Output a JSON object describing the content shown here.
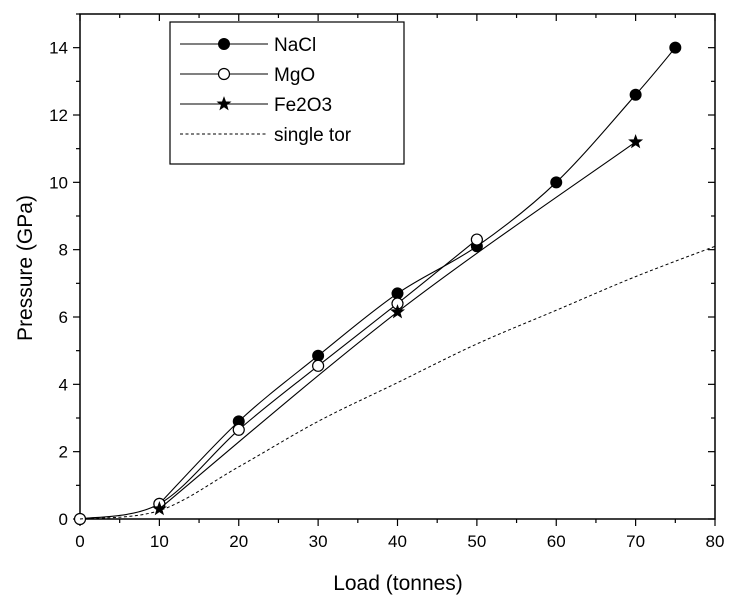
{
  "chart_data": {
    "type": "line",
    "xlabel": "Load (tonnes)",
    "ylabel": "Pressure (GPa)",
    "xlim": [
      0,
      80
    ],
    "ylim": [
      0,
      15
    ],
    "xticks": [
      0,
      10,
      20,
      30,
      40,
      50,
      60,
      70,
      80
    ],
    "yticks": [
      0,
      2,
      4,
      6,
      8,
      10,
      12,
      14
    ],
    "grid": false,
    "legend_position": "top-left",
    "series": [
      {
        "name": "NaCl",
        "marker": "filled-circle",
        "line": "solid",
        "x": [
          10,
          20,
          30,
          40,
          50,
          60,
          70,
          75
        ],
        "y": [
          0.45,
          2.9,
          4.85,
          6.7,
          8.1,
          10.0,
          12.6,
          14.0
        ]
      },
      {
        "name": "MgO",
        "marker": "open-circle",
        "line": "solid",
        "x": [
          0,
          10,
          20,
          30,
          40,
          50
        ],
        "y": [
          0.0,
          0.45,
          2.65,
          4.55,
          6.4,
          8.3
        ]
      },
      {
        "name": "Fe2O3",
        "marker": "star",
        "line": "solid",
        "x": [
          10,
          40,
          70
        ],
        "y": [
          0.3,
          6.15,
          11.2
        ]
      },
      {
        "name": "single tor",
        "marker": "none",
        "line": "dashed",
        "x": [
          0,
          10,
          20,
          30,
          40,
          50,
          60,
          70,
          80
        ],
        "y": [
          0.0,
          0.25,
          1.55,
          2.9,
          4.05,
          5.2,
          6.2,
          7.2,
          8.1
        ]
      }
    ],
    "x_minor_tick_step": 5,
    "y_minor_tick_step": 1,
    "colors": {
      "axes": "#000000",
      "series": "#000000",
      "background": "#ffffff"
    }
  }
}
